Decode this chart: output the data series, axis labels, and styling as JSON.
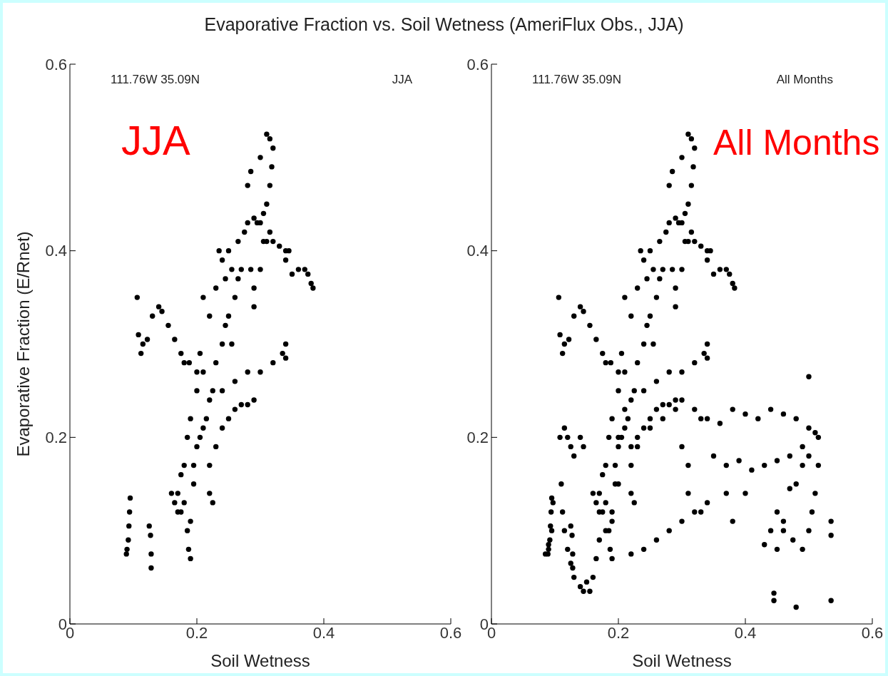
{
  "chart_data": [
    {
      "type": "scatter",
      "title": "Evaporative Fraction vs. Soil Wetness (AmeriFlux Obs., JJA)",
      "xlabel": "Soil Wetness",
      "ylabel": "Evaporative Fraction (E/Rnet)",
      "xlim": [
        0,
        0.6
      ],
      "ylim": [
        0,
        0.6
      ],
      "xticks": [
        0,
        0.2,
        0.4,
        0.6
      ],
      "yticks": [
        0,
        0.2,
        0.4,
        0.6
      ],
      "grid": false,
      "legend": false,
      "marker": "circle",
      "annotations": [
        "111.76W 35.09N",
        "JJA",
        "JJA"
      ],
      "series": [
        {
          "color": "#000000",
          "x": [
            0.089,
            0.09,
            0.092,
            0.093,
            0.094,
            0.095,
            0.125,
            0.127,
            0.128,
            0.128,
            0.106,
            0.108,
            0.112,
            0.115,
            0.122,
            0.13,
            0.14,
            0.145,
            0.155,
            0.165,
            0.175,
            0.18,
            0.188,
            0.17,
            0.175,
            0.18,
            0.185,
            0.187,
            0.19,
            0.19,
            0.195,
            0.195,
            0.2,
            0.205,
            0.21,
            0.215,
            0.22,
            0.225,
            0.23,
            0.24,
            0.245,
            0.25,
            0.255,
            0.26,
            0.265,
            0.27,
            0.255,
            0.245,
            0.24,
            0.235,
            0.25,
            0.265,
            0.275,
            0.28,
            0.29,
            0.295,
            0.285,
            0.29,
            0.29,
            0.3,
            0.305,
            0.31,
            0.315,
            0.32,
            0.33,
            0.34,
            0.345,
            0.34,
            0.36,
            0.37,
            0.375,
            0.38,
            0.383,
            0.35,
            0.3,
            0.305,
            0.31,
            0.315,
            0.318,
            0.32,
            0.315,
            0.31,
            0.3,
            0.28,
            0.285,
            0.22,
            0.23,
            0.24,
            0.25,
            0.26,
            0.27,
            0.28,
            0.29,
            0.24,
            0.26,
            0.28,
            0.3,
            0.32,
            0.335,
            0.34,
            0.34,
            0.225,
            0.22,
            0.16,
            0.165,
            0.17,
            0.175,
            0.18,
            0.185,
            0.19,
            0.2,
            0.21,
            0.205,
            0.22,
            0.21,
            0.2,
            0.23
          ],
          "values": [
            0.075,
            0.08,
            0.09,
            0.105,
            0.12,
            0.135,
            0.105,
            0.095,
            0.075,
            0.06,
            0.35,
            0.31,
            0.29,
            0.3,
            0.305,
            0.33,
            0.34,
            0.335,
            0.32,
            0.305,
            0.29,
            0.28,
            0.28,
            0.14,
            0.12,
            0.13,
            0.1,
            0.08,
            0.07,
            0.11,
            0.15,
            0.17,
            0.19,
            0.2,
            0.21,
            0.22,
            0.24,
            0.25,
            0.28,
            0.3,
            0.32,
            0.33,
            0.3,
            0.35,
            0.37,
            0.38,
            0.38,
            0.37,
            0.39,
            0.4,
            0.4,
            0.41,
            0.42,
            0.43,
            0.435,
            0.43,
            0.38,
            0.36,
            0.34,
            0.38,
            0.41,
            0.41,
            0.42,
            0.41,
            0.405,
            0.4,
            0.4,
            0.39,
            0.38,
            0.38,
            0.375,
            0.365,
            0.36,
            0.375,
            0.43,
            0.44,
            0.45,
            0.47,
            0.49,
            0.51,
            0.52,
            0.525,
            0.5,
            0.47,
            0.485,
            0.17,
            0.19,
            0.21,
            0.22,
            0.23,
            0.235,
            0.235,
            0.24,
            0.25,
            0.26,
            0.27,
            0.27,
            0.28,
            0.29,
            0.3,
            0.285,
            0.13,
            0.14,
            0.14,
            0.13,
            0.12,
            0.16,
            0.17,
            0.2,
            0.22,
            0.25,
            0.27,
            0.29,
            0.33,
            0.35,
            0.27,
            0.36
          ]
        }
      ]
    },
    {
      "type": "scatter",
      "xlabel": "Soil Wetness",
      "xlim": [
        0,
        0.6
      ],
      "ylim": [
        0,
        0.6
      ],
      "xticks": [
        0,
        0.2,
        0.4,
        0.6
      ],
      "yticks": [
        0,
        0.2,
        0.4,
        0.6
      ],
      "grid": false,
      "legend": false,
      "marker": "circle",
      "annotations": [
        "111.76W 35.09N",
        "All Months",
        "All Months"
      ],
      "series": [
        {
          "color": "#000000",
          "x": [
            0.089,
            0.09,
            0.092,
            0.093,
            0.094,
            0.095,
            0.125,
            0.127,
            0.128,
            0.128,
            0.106,
            0.108,
            0.112,
            0.115,
            0.122,
            0.13,
            0.14,
            0.145,
            0.155,
            0.165,
            0.175,
            0.18,
            0.188,
            0.17,
            0.175,
            0.18,
            0.185,
            0.187,
            0.19,
            0.19,
            0.195,
            0.195,
            0.2,
            0.205,
            0.21,
            0.215,
            0.22,
            0.225,
            0.23,
            0.24,
            0.245,
            0.25,
            0.255,
            0.26,
            0.265,
            0.27,
            0.255,
            0.245,
            0.24,
            0.235,
            0.25,
            0.265,
            0.275,
            0.28,
            0.29,
            0.295,
            0.285,
            0.29,
            0.29,
            0.3,
            0.305,
            0.31,
            0.315,
            0.32,
            0.33,
            0.34,
            0.345,
            0.34,
            0.36,
            0.37,
            0.375,
            0.38,
            0.383,
            0.35,
            0.3,
            0.305,
            0.31,
            0.315,
            0.318,
            0.32,
            0.315,
            0.31,
            0.3,
            0.28,
            0.285,
            0.22,
            0.23,
            0.24,
            0.25,
            0.26,
            0.27,
            0.28,
            0.29,
            0.24,
            0.26,
            0.28,
            0.3,
            0.32,
            0.335,
            0.34,
            0.34,
            0.225,
            0.22,
            0.16,
            0.165,
            0.17,
            0.175,
            0.18,
            0.185,
            0.19,
            0.2,
            0.21,
            0.205,
            0.22,
            0.21,
            0.2,
            0.23,
            0.085,
            0.09,
            0.095,
            0.097,
            0.108,
            0.115,
            0.12,
            0.125,
            0.13,
            0.14,
            0.145,
            0.11,
            0.112,
            0.115,
            0.12,
            0.125,
            0.13,
            0.14,
            0.145,
            0.15,
            0.155,
            0.16,
            0.165,
            0.17,
            0.18,
            0.19,
            0.2,
            0.2,
            0.21,
            0.22,
            0.23,
            0.25,
            0.27,
            0.29,
            0.3,
            0.32,
            0.33,
            0.34,
            0.36,
            0.38,
            0.4,
            0.42,
            0.44,
            0.46,
            0.48,
            0.5,
            0.51,
            0.515,
            0.515,
            0.51,
            0.505,
            0.5,
            0.49,
            0.475,
            0.46,
            0.45,
            0.44,
            0.43,
            0.45,
            0.46,
            0.47,
            0.48,
            0.49,
            0.5,
            0.35,
            0.37,
            0.39,
            0.41,
            0.43,
            0.45,
            0.47,
            0.49,
            0.3,
            0.31,
            0.31,
            0.32,
            0.33,
            0.34,
            0.3,
            0.28,
            0.26,
            0.24,
            0.22,
            0.445,
            0.445,
            0.48,
            0.535,
            0.535,
            0.535,
            0.5,
            0.4,
            0.37,
            0.38
          ],
          "values": [
            0.075,
            0.08,
            0.09,
            0.105,
            0.12,
            0.135,
            0.105,
            0.095,
            0.075,
            0.06,
            0.35,
            0.31,
            0.29,
            0.3,
            0.305,
            0.33,
            0.34,
            0.335,
            0.32,
            0.305,
            0.29,
            0.28,
            0.28,
            0.14,
            0.12,
            0.13,
            0.1,
            0.08,
            0.07,
            0.11,
            0.15,
            0.17,
            0.19,
            0.2,
            0.21,
            0.22,
            0.24,
            0.25,
            0.28,
            0.3,
            0.32,
            0.33,
            0.3,
            0.35,
            0.37,
            0.38,
            0.38,
            0.37,
            0.39,
            0.4,
            0.4,
            0.41,
            0.42,
            0.43,
            0.435,
            0.43,
            0.38,
            0.36,
            0.34,
            0.38,
            0.41,
            0.41,
            0.42,
            0.41,
            0.405,
            0.4,
            0.4,
            0.39,
            0.38,
            0.38,
            0.375,
            0.365,
            0.36,
            0.375,
            0.43,
            0.44,
            0.45,
            0.47,
            0.49,
            0.51,
            0.52,
            0.525,
            0.5,
            0.47,
            0.485,
            0.17,
            0.19,
            0.21,
            0.22,
            0.23,
            0.235,
            0.235,
            0.24,
            0.25,
            0.26,
            0.27,
            0.27,
            0.28,
            0.29,
            0.3,
            0.285,
            0.13,
            0.14,
            0.14,
            0.13,
            0.12,
            0.16,
            0.17,
            0.2,
            0.22,
            0.25,
            0.27,
            0.29,
            0.33,
            0.35,
            0.27,
            0.36,
            0.075,
            0.085,
            0.1,
            0.13,
            0.2,
            0.21,
            0.2,
            0.19,
            0.18,
            0.2,
            0.19,
            0.15,
            0.12,
            0.1,
            0.08,
            0.065,
            0.05,
            0.04,
            0.035,
            0.045,
            0.035,
            0.05,
            0.07,
            0.09,
            0.1,
            0.12,
            0.15,
            0.2,
            0.23,
            0.19,
            0.2,
            0.21,
            0.22,
            0.23,
            0.24,
            0.23,
            0.22,
            0.22,
            0.215,
            0.23,
            0.225,
            0.22,
            0.23,
            0.225,
            0.22,
            0.21,
            0.205,
            0.2,
            0.17,
            0.14,
            0.12,
            0.1,
            0.08,
            0.09,
            0.1,
            0.12,
            0.1,
            0.085,
            0.08,
            0.11,
            0.145,
            0.15,
            0.17,
            0.18,
            0.18,
            0.17,
            0.175,
            0.165,
            0.17,
            0.175,
            0.18,
            0.19,
            0.19,
            0.17,
            0.14,
            0.12,
            0.12,
            0.13,
            0.11,
            0.1,
            0.09,
            0.08,
            0.075,
            0.033,
            0.025,
            0.018,
            0.025,
            0.11,
            0.095,
            0.265,
            0.14,
            0.14,
            0.11
          ]
        }
      ]
    }
  ]
}
